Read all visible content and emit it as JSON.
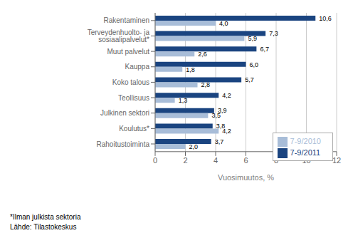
{
  "chart_data": {
    "type": "bar",
    "orientation": "horizontal",
    "categories": [
      "Rakentaminen",
      "Terveydenhuolto- ja sosiaalipalvelut*",
      "Muut palvelut",
      "Kauppa",
      "Koko talous",
      "Teollisuus",
      "Julkinen sektori",
      "Koulutus*",
      "Rahoitustoiminta"
    ],
    "series": [
      {
        "name": "7-9/2011",
        "color": "#1A4480",
        "values": [
          10.6,
          7.3,
          6.7,
          6.0,
          5.7,
          4.2,
          3.9,
          3.8,
          3.7
        ],
        "value_labels": [
          "10,6",
          "7,3",
          "6,7",
          "6,0",
          "5,7",
          "4,2",
          "3,9",
          "3,8",
          "3,7"
        ]
      },
      {
        "name": "7-9/2010",
        "color": "#A8BDD8",
        "values": [
          4.0,
          5.9,
          2.6,
          1.8,
          2.8,
          1.3,
          3.5,
          4.2,
          2.0
        ],
        "value_labels": [
          "4,0",
          "5,9",
          "2,6",
          "1,8",
          "2,8",
          "1,3",
          "3,5",
          "4,2",
          "2,0"
        ]
      }
    ],
    "xlabel": "Vuosimuutos, %",
    "xlim": [
      0,
      12
    ],
    "xticks": [
      0,
      2,
      4,
      6,
      8,
      10,
      12
    ],
    "grid": true,
    "legend": "right",
    "data_labels": true,
    "annotations": [
      "*Ilman julkista sektoria",
      "Lähde: Tilastokeskus"
    ]
  }
}
